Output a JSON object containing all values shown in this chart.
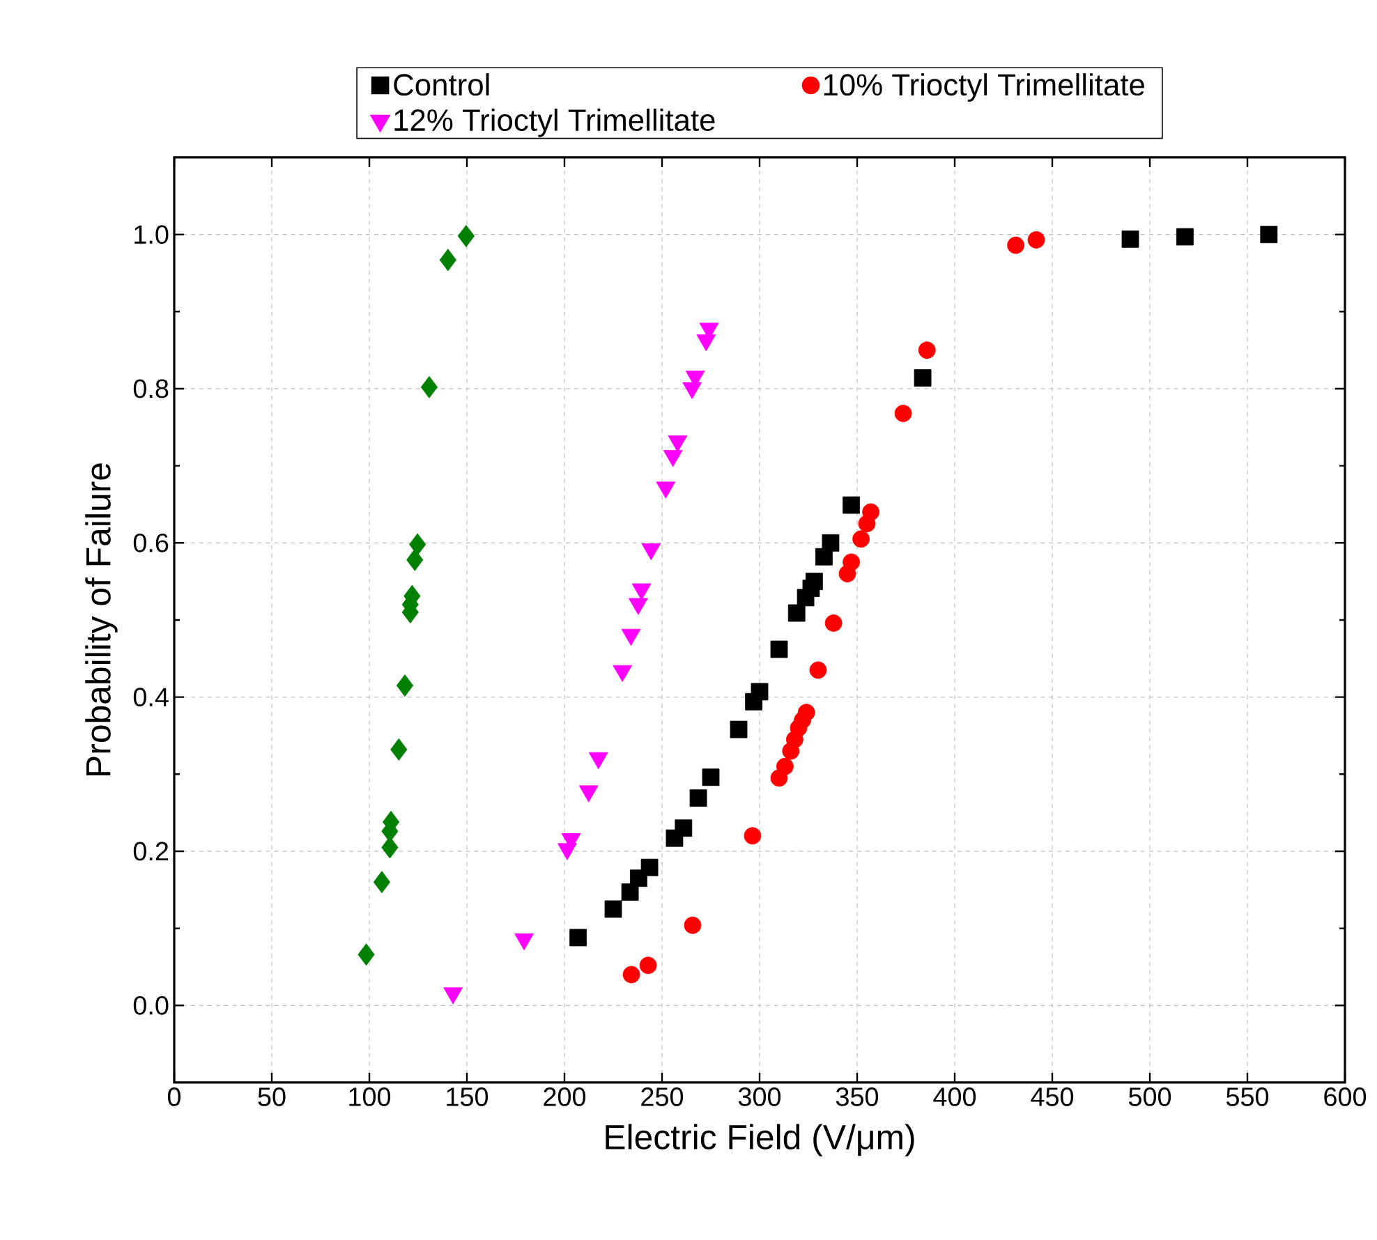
{
  "chart_data": {
    "type": "scatter",
    "xlabel": "Electric Field (V/μm)",
    "ylabel": "Probability of Failure",
    "xlim": [
      0,
      600
    ],
    "ylim": [
      -0.1,
      1.1
    ],
    "xticks": [
      0,
      50,
      100,
      150,
      200,
      250,
      300,
      350,
      400,
      450,
      500,
      550,
      600
    ],
    "yticks": [
      {
        "value": 0,
        "label": "0.0"
      },
      {
        "value": 0.2,
        "label": "0.2"
      },
      {
        "value": 0.4,
        "label": "0.4"
      },
      {
        "value": 0.6,
        "label": "0.6"
      },
      {
        "value": 0.8,
        "label": "0.8"
      },
      {
        "value": 1,
        "label": "1.0"
      }
    ],
    "grid": true,
    "legend": "top",
    "series": [
      {
        "name": "Control",
        "color": "#000000",
        "marker": "square",
        "x": [
          207,
          225,
          233.6,
          238,
          243.6,
          256.4,
          261,
          268.6,
          275,
          289.3,
          297,
          300,
          310,
          319,
          323.6,
          326.4,
          328,
          333,
          336.4,
          347,
          383.6,
          490,
          518,
          561
        ],
        "values": [
          0.088,
          0.125,
          0.147,
          0.165,
          0.179,
          0.217,
          0.23,
          0.269,
          0.296,
          0.358,
          0.394,
          0.407,
          0.462,
          0.509,
          0.529,
          0.541,
          0.55,
          0.582,
          0.6,
          0.649,
          0.814,
          0.994,
          0.997,
          1.0
        ]
      },
      {
        "name": "10% Trioctyl Trimellitate",
        "color": "#ff0000",
        "marker": "circle",
        "x": [
          234.3,
          242.9,
          265.7,
          296.4,
          310,
          313,
          316,
          318,
          320,
          322,
          324,
          330,
          337.9,
          345,
          347,
          352,
          355,
          357,
          373.6,
          385.8,
          431.3,
          441.8
        ],
        "values": [
          0.04,
          0.052,
          0.104,
          0.22,
          0.295,
          0.31,
          0.33,
          0.345,
          0.36,
          0.37,
          0.38,
          0.435,
          0.496,
          0.56,
          0.575,
          0.605,
          0.625,
          0.64,
          0.768,
          0.85,
          0.986,
          0.993
        ]
      },
      {
        "color": "#008000",
        "marker": "diamond",
        "x": [
          149.6,
          140.3,
          130.7,
          124.7,
          123.3,
          121.9,
          121,
          121,
          118.2,
          115.1,
          111.1,
          110.5,
          110.5,
          106.4,
          98.4
        ],
        "values": [
          0.998,
          0.967,
          0.802,
          0.598,
          0.578,
          0.531,
          0.52,
          0.51,
          0.415,
          0.332,
          0.238,
          0.226,
          0.205,
          0.16,
          0.066
        ]
      },
      {
        "name": "12% Trioctyl Trimellitate",
        "color": "#ff00ff",
        "marker": "triangle",
        "x": [
          142.9,
          179.3,
          201.4,
          203.4,
          212.4,
          217.4,
          229.7,
          234.1,
          237.8,
          239.5,
          244.4,
          251.9,
          255.6,
          258,
          265.4,
          267,
          272.6,
          274.1
        ],
        "values": [
          0.016,
          0.086,
          0.203,
          0.216,
          0.278,
          0.321,
          0.434,
          0.481,
          0.521,
          0.54,
          0.592,
          0.672,
          0.713,
          0.732,
          0.801,
          0.816,
          0.863,
          0.878
        ]
      }
    ]
  }
}
